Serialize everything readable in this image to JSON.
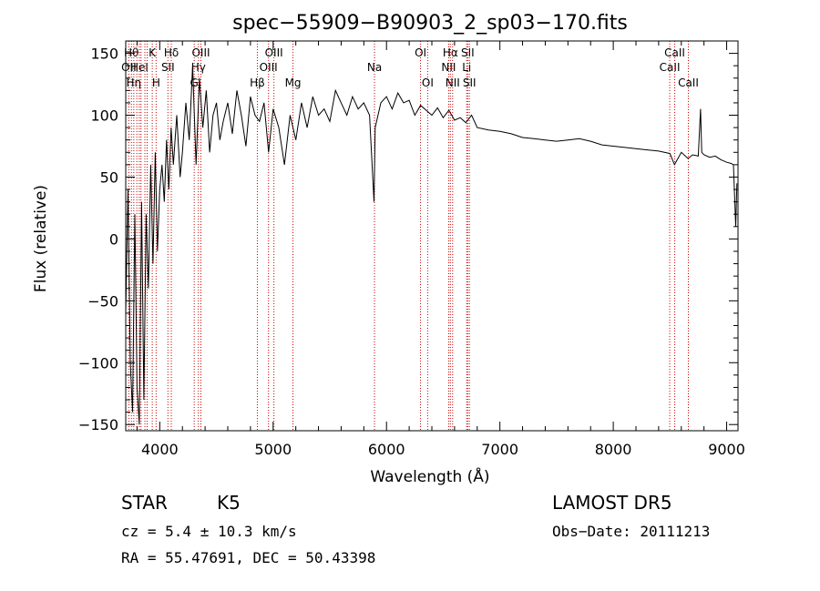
{
  "chart_data": {
    "type": "line",
    "title": "spec−55909−B90903_2_sp03−170.fits",
    "xlabel": "Wavelength (Å)",
    "ylabel": "Flux (relative)",
    "xlim": [
      3700,
      9100
    ],
    "ylim": [
      -155,
      160
    ],
    "xticks": [
      4000,
      5000,
      6000,
      7000,
      8000,
      9000
    ],
    "xtick_labels": [
      "4000",
      "5000",
      "6000",
      "7000",
      "8000",
      "9000"
    ],
    "yticks": [
      -150,
      -100,
      -50,
      0,
      50,
      100,
      150
    ],
    "ytick_labels": [
      "−150",
      "−100",
      "−50",
      "0",
      "50",
      "100",
      "150"
    ],
    "grid": false,
    "series": [
      {
        "values_note": "",
        "x": [
          3700,
          3720,
          3740,
          3760,
          3780,
          3800,
          3820,
          3840,
          3860,
          3880,
          3900,
          3920,
          3940,
          3960,
          3980,
          4000,
          4020,
          4040,
          4060,
          4080,
          4100,
          4120,
          4150,
          4180,
          4200,
          4230,
          4260,
          4290,
          4320,
          4350,
          4380,
          4410,
          4440,
          4470,
          4500,
          4530,
          4560,
          4600,
          4640,
          4680,
          4720,
          4760,
          4800,
          4840,
          4880,
          4920,
          4960,
          5000,
          5050,
          5100,
          5150,
          5200,
          5250,
          5300,
          5350,
          5400,
          5450,
          5500,
          5550,
          5600,
          5650,
          5700,
          5750,
          5800,
          5850,
          5890,
          5900,
          5950,
          6000,
          6050,
          6100,
          6150,
          6200,
          6250,
          6300,
          6350,
          6400,
          6450,
          6500,
          6550,
          6600,
          6650,
          6700,
          6750,
          6800,
          6900,
          7000,
          7100,
          7200,
          7300,
          7400,
          7500,
          7600,
          7700,
          7800,
          7900,
          8000,
          8100,
          8200,
          8300,
          8400,
          8500,
          8540,
          8600,
          8660,
          8700,
          8750,
          8770,
          8780,
          8800,
          8850,
          8900,
          8950,
          9000,
          9040,
          9060,
          9080,
          9090
        ],
        "y": [
          -60,
          40,
          -100,
          -140,
          20,
          -120,
          -150,
          30,
          -130,
          20,
          -40,
          60,
          -20,
          70,
          -10,
          40,
          60,
          30,
          80,
          40,
          90,
          60,
          100,
          50,
          70,
          110,
          80,
          140,
          60,
          130,
          90,
          120,
          70,
          100,
          110,
          80,
          95,
          110,
          85,
          120,
          100,
          75,
          115,
          100,
          95,
          110,
          70,
          105,
          90,
          60,
          100,
          80,
          110,
          90,
          115,
          100,
          105,
          95,
          120,
          110,
          100,
          115,
          105,
          110,
          100,
          30,
          90,
          110,
          115,
          105,
          118,
          110,
          112,
          100,
          108,
          104,
          100,
          106,
          98,
          104,
          96,
          98,
          94,
          100,
          90,
          88,
          87,
          85,
          82,
          81,
          80,
          79,
          80,
          81,
          79,
          76,
          75,
          74,
          73,
          72,
          71,
          69,
          60,
          70,
          65,
          68,
          67,
          105,
          70,
          68,
          66,
          67,
          64,
          62,
          61,
          60,
          10,
          45
        ]
      }
    ],
    "lines": [
      {
        "x": 3727,
        "label": "OII",
        "row": 1
      },
      {
        "x": 3750,
        "label": "Hθ",
        "row": 0
      },
      {
        "x": 3771,
        "label": "Hη",
        "row": 2
      },
      {
        "x": 3798,
        "label": "",
        "row": 2
      },
      {
        "x": 3820,
        "label": "HeI",
        "row": 1
      },
      {
        "x": 3835,
        "label": "",
        "row": 0
      },
      {
        "x": 3869,
        "label": "",
        "row": 1
      },
      {
        "x": 3889,
        "label": "",
        "row": 2
      },
      {
        "x": 3934,
        "label": "K",
        "row": 0
      },
      {
        "x": 3968,
        "label": "H",
        "row": 2
      },
      {
        "x": 4072,
        "label": "SII",
        "row": 1
      },
      {
        "x": 4102,
        "label": "Hδ",
        "row": 0
      },
      {
        "x": 4304,
        "label": "G",
        "row": 2
      },
      {
        "x": 4341,
        "label": "Hγ",
        "row": 1
      },
      {
        "x": 4363,
        "label": "OIII",
        "row": 0
      },
      {
        "x": 4861,
        "label": "Hβ",
        "row": 2
      },
      {
        "x": 4959,
        "label": "OIII",
        "row": 1
      },
      {
        "x": 5007,
        "label": "OIII",
        "row": 0
      },
      {
        "x": 5175,
        "label": "Mg",
        "row": 2
      },
      {
        "x": 5894,
        "label": "Na",
        "row": 1
      },
      {
        "x": 6300,
        "label": "OI",
        "row": 0
      },
      {
        "x": 6363,
        "label": "OI",
        "row": 2
      },
      {
        "x": 6548,
        "label": "NII",
        "row": 1
      },
      {
        "x": 6563,
        "label": "Hα",
        "row": 0
      },
      {
        "x": 6583,
        "label": "NII",
        "row": 2
      },
      {
        "x": 6707,
        "label": "Li",
        "row": 1
      },
      {
        "x": 6716,
        "label": "SII",
        "row": 0
      },
      {
        "x": 6731,
        "label": "SII",
        "row": 2
      },
      {
        "x": 8498,
        "label": "CaII",
        "row": 1
      },
      {
        "x": 8542,
        "label": "CaII",
        "row": 0
      },
      {
        "x": 8662,
        "label": "CaII",
        "row": 2
      }
    ],
    "line_color": "#cc0000",
    "trace_color": "#000000"
  },
  "info": {
    "class": "STAR",
    "subclass": "K5",
    "survey": "LAMOST DR5",
    "cz": "cz = 5.4 ± 10.3 km/s",
    "obsdate": "Obs−Date: 20111213",
    "radec": "RA =  55.47691, DEC =  50.43398"
  }
}
